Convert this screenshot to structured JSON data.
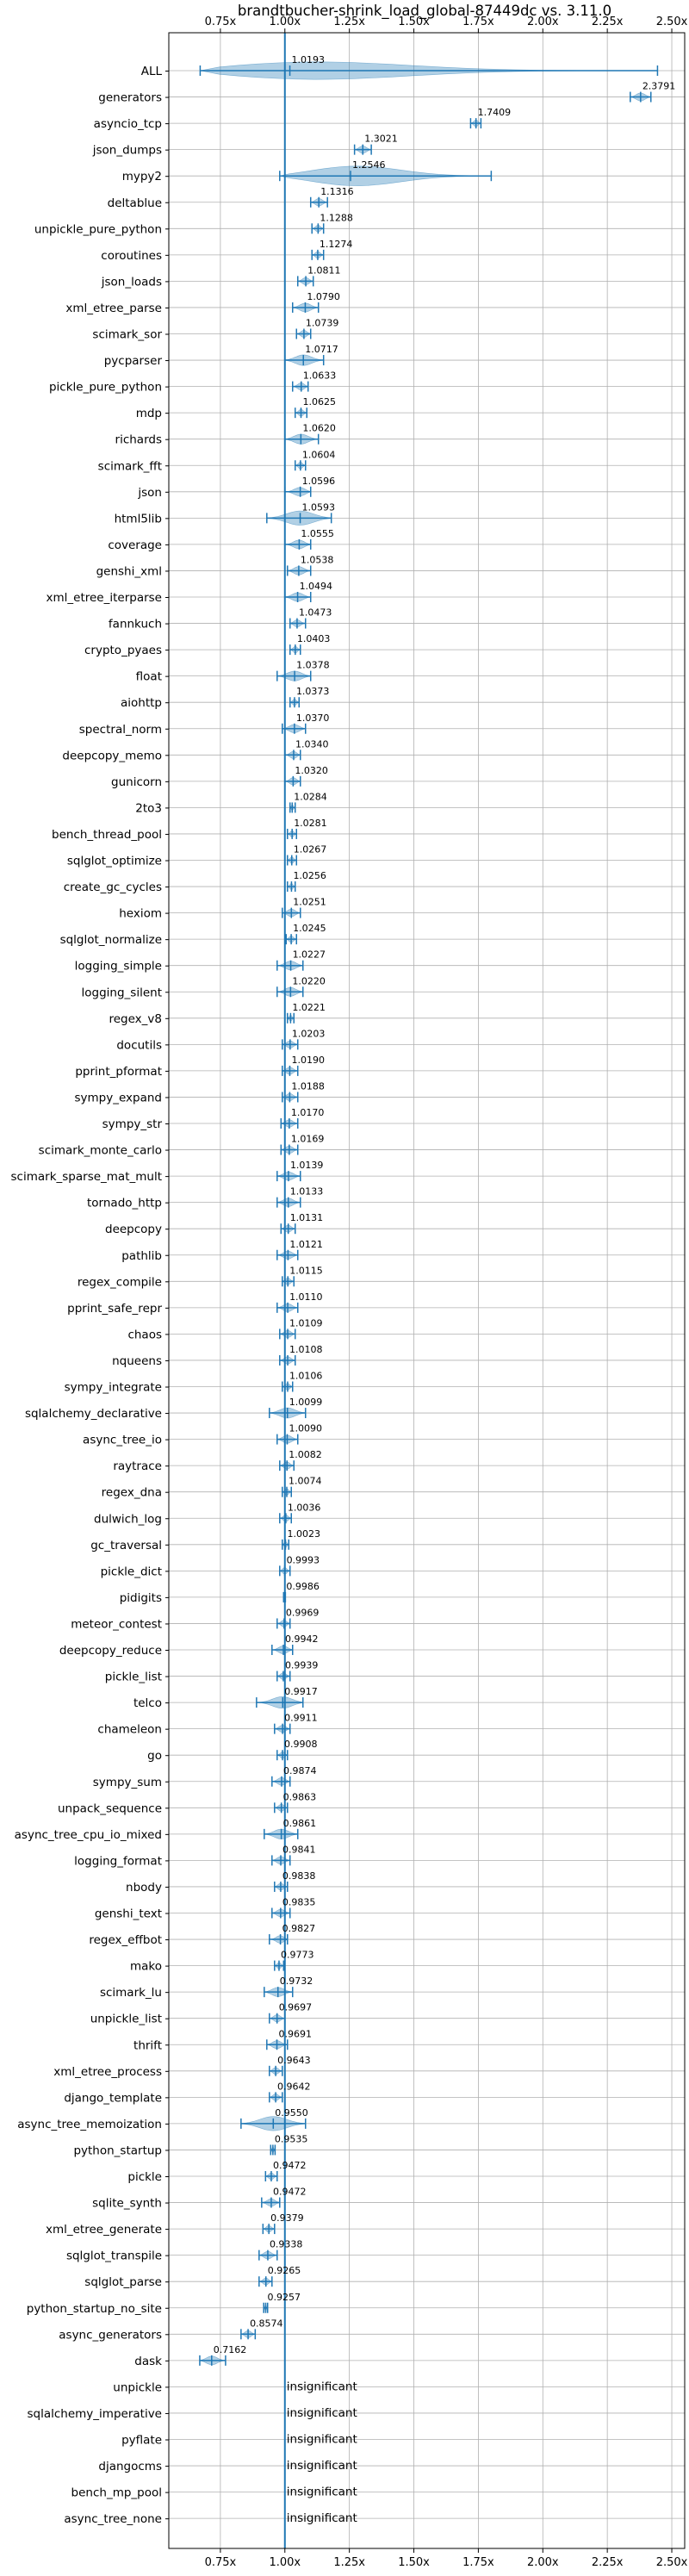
{
  "chart_data": {
    "type": "violin",
    "title": "brandtbucher-shrink_load_global-87449dc vs. 3.11.0",
    "xlim": [
      0.55,
      2.55
    ],
    "xticks": [
      0.75,
      1.0,
      1.25,
      1.5,
      1.75,
      2.0,
      2.25,
      2.5
    ],
    "xtick_labels": [
      "0.75x",
      "1.00x",
      "1.25x",
      "1.50x",
      "1.75x",
      "2.00x",
      "2.25x",
      "2.50x"
    ],
    "reference_line": 1.0,
    "grid": true,
    "colors": {
      "accent": "#1f77b4",
      "violin_fill": "#1f77b4",
      "grid": "#b0b0b0"
    },
    "insignificant_label": "insignificant",
    "benchmarks": [
      {
        "name": "ALL",
        "value": 1.0193,
        "min": 0.6716,
        "max": 2.4446,
        "label": "1.0193"
      },
      {
        "name": "generators",
        "value": 2.3791,
        "min": 2.339,
        "max": 2.419,
        "label": "2.3791"
      },
      {
        "name": "asyncio_tcp",
        "value": 1.7409,
        "min": 1.72,
        "max": 1.76,
        "label": "1.7409"
      },
      {
        "name": "json_dumps",
        "value": 1.3021,
        "min": 1.27,
        "max": 1.335,
        "label": "1.3021"
      },
      {
        "name": "mypy2",
        "value": 1.2546,
        "min": 0.98,
        "max": 1.8,
        "label": "1.2546"
      },
      {
        "name": "deltablue",
        "value": 1.1316,
        "min": 1.1,
        "max": 1.165,
        "label": "1.1316"
      },
      {
        "name": "unpickle_pure_python",
        "value": 1.1288,
        "min": 1.105,
        "max": 1.15,
        "label": "1.1288"
      },
      {
        "name": "coroutines",
        "value": 1.1274,
        "min": 1.105,
        "max": 1.15,
        "label": "1.1274"
      },
      {
        "name": "json_loads",
        "value": 1.0811,
        "min": 1.05,
        "max": 1.11,
        "label": "1.0811"
      },
      {
        "name": "xml_etree_parse",
        "value": 1.079,
        "min": 1.03,
        "max": 1.13,
        "label": "1.0790"
      },
      {
        "name": "scimark_sor",
        "value": 1.0739,
        "min": 1.045,
        "max": 1.1,
        "label": "1.0739"
      },
      {
        "name": "pycparser",
        "value": 1.0717,
        "min": 1.0,
        "max": 1.15,
        "label": "1.0717"
      },
      {
        "name": "pickle_pure_python",
        "value": 1.0633,
        "min": 1.03,
        "max": 1.09,
        "label": "1.0633"
      },
      {
        "name": "mdp",
        "value": 1.0625,
        "min": 1.04,
        "max": 1.085,
        "label": "1.0625"
      },
      {
        "name": "richards",
        "value": 1.062,
        "min": 1.0,
        "max": 1.13,
        "label": "1.0620"
      },
      {
        "name": "scimark_fft",
        "value": 1.0604,
        "min": 1.04,
        "max": 1.08,
        "label": "1.0604"
      },
      {
        "name": "json",
        "value": 1.0596,
        "min": 1.0,
        "max": 1.1,
        "label": "1.0596"
      },
      {
        "name": "html5lib",
        "value": 1.0593,
        "min": 0.93,
        "max": 1.18,
        "label": "1.0593"
      },
      {
        "name": "coverage",
        "value": 1.0555,
        "min": 1.0,
        "max": 1.1,
        "label": "1.0555"
      },
      {
        "name": "genshi_xml",
        "value": 1.0538,
        "min": 1.01,
        "max": 1.1,
        "label": "1.0538"
      },
      {
        "name": "xml_etree_iterparse",
        "value": 1.0494,
        "min": 1.0,
        "max": 1.1,
        "label": "1.0494"
      },
      {
        "name": "fannkuch",
        "value": 1.0473,
        "min": 1.02,
        "max": 1.08,
        "label": "1.0473"
      },
      {
        "name": "crypto_pyaes",
        "value": 1.0403,
        "min": 1.02,
        "max": 1.06,
        "label": "1.0403"
      },
      {
        "name": "float",
        "value": 1.0378,
        "min": 0.97,
        "max": 1.1,
        "label": "1.0378"
      },
      {
        "name": "aiohttp",
        "value": 1.0373,
        "min": 1.02,
        "max": 1.055,
        "label": "1.0373"
      },
      {
        "name": "spectral_norm",
        "value": 1.037,
        "min": 0.99,
        "max": 1.08,
        "label": "1.0370"
      },
      {
        "name": "deepcopy_memo",
        "value": 1.034,
        "min": 1.0,
        "max": 1.06,
        "label": "1.0340"
      },
      {
        "name": "gunicorn",
        "value": 1.032,
        "min": 1.0,
        "max": 1.06,
        "label": "1.0320"
      },
      {
        "name": "2to3",
        "value": 1.0284,
        "min": 1.02,
        "max": 1.04,
        "label": "1.0284"
      },
      {
        "name": "bench_thread_pool",
        "value": 1.0281,
        "min": 1.01,
        "max": 1.045,
        "label": "1.0281"
      },
      {
        "name": "sqlglot_optimize",
        "value": 1.0267,
        "min": 1.01,
        "max": 1.045,
        "label": "1.0267"
      },
      {
        "name": "create_gc_cycles",
        "value": 1.0256,
        "min": 1.01,
        "max": 1.04,
        "label": "1.0256"
      },
      {
        "name": "hexiom",
        "value": 1.0251,
        "min": 0.99,
        "max": 1.06,
        "label": "1.0251"
      },
      {
        "name": "sqlglot_normalize",
        "value": 1.0245,
        "min": 1.005,
        "max": 1.045,
        "label": "1.0245"
      },
      {
        "name": "logging_simple",
        "value": 1.0227,
        "min": 0.97,
        "max": 1.07,
        "label": "1.0227"
      },
      {
        "name": "logging_silent",
        "value": 1.022,
        "min": 0.97,
        "max": 1.07,
        "label": "1.0220"
      },
      {
        "name": "regex_v8",
        "value": 1.0221,
        "min": 1.01,
        "max": 1.035,
        "label": "1.0221"
      },
      {
        "name": "docutils",
        "value": 1.0203,
        "min": 0.99,
        "max": 1.05,
        "label": "1.0203"
      },
      {
        "name": "pprint_pformat",
        "value": 1.019,
        "min": 0.99,
        "max": 1.05,
        "label": "1.0190"
      },
      {
        "name": "sympy_expand",
        "value": 1.0188,
        "min": 0.99,
        "max": 1.05,
        "label": "1.0188"
      },
      {
        "name": "sympy_str",
        "value": 1.017,
        "min": 0.985,
        "max": 1.05,
        "label": "1.0170"
      },
      {
        "name": "scimark_monte_carlo",
        "value": 1.0169,
        "min": 0.985,
        "max": 1.05,
        "label": "1.0169"
      },
      {
        "name": "scimark_sparse_mat_mult",
        "value": 1.0139,
        "min": 0.97,
        "max": 1.06,
        "label": "1.0139"
      },
      {
        "name": "tornado_http",
        "value": 1.0133,
        "min": 0.97,
        "max": 1.06,
        "label": "1.0133"
      },
      {
        "name": "deepcopy",
        "value": 1.0131,
        "min": 0.985,
        "max": 1.04,
        "label": "1.0131"
      },
      {
        "name": "pathlib",
        "value": 1.0121,
        "min": 0.97,
        "max": 1.05,
        "label": "1.0121"
      },
      {
        "name": "regex_compile",
        "value": 1.0115,
        "min": 0.99,
        "max": 1.035,
        "label": "1.0115"
      },
      {
        "name": "pprint_safe_repr",
        "value": 1.011,
        "min": 0.97,
        "max": 1.05,
        "label": "1.0110"
      },
      {
        "name": "chaos",
        "value": 1.0109,
        "min": 0.98,
        "max": 1.04,
        "label": "1.0109"
      },
      {
        "name": "nqueens",
        "value": 1.0108,
        "min": 0.98,
        "max": 1.04,
        "label": "1.0108"
      },
      {
        "name": "sympy_integrate",
        "value": 1.0106,
        "min": 0.99,
        "max": 1.03,
        "label": "1.0106"
      },
      {
        "name": "sqlalchemy_declarative",
        "value": 1.0099,
        "min": 0.94,
        "max": 1.08,
        "label": "1.0099"
      },
      {
        "name": "async_tree_io",
        "value": 1.009,
        "min": 0.97,
        "max": 1.05,
        "label": "1.0090"
      },
      {
        "name": "raytrace",
        "value": 1.0082,
        "min": 0.98,
        "max": 1.035,
        "label": "1.0082"
      },
      {
        "name": "regex_dna",
        "value": 1.0074,
        "min": 0.99,
        "max": 1.025,
        "label": "1.0074"
      },
      {
        "name": "dulwich_log",
        "value": 1.0036,
        "min": 0.98,
        "max": 1.025,
        "label": "1.0036"
      },
      {
        "name": "gc_traversal",
        "value": 1.0023,
        "min": 0.99,
        "max": 1.015,
        "label": "1.0023"
      },
      {
        "name": "pickle_dict",
        "value": 0.9993,
        "min": 0.98,
        "max": 1.02,
        "label": "0.9993"
      },
      {
        "name": "pidigits",
        "value": 0.9986,
        "min": 0.995,
        "max": 1.002,
        "label": "0.9986"
      },
      {
        "name": "meteor_contest",
        "value": 0.9969,
        "min": 0.97,
        "max": 1.02,
        "label": "0.9969"
      },
      {
        "name": "deepcopy_reduce",
        "value": 0.9942,
        "min": 0.95,
        "max": 1.03,
        "label": "0.9942"
      },
      {
        "name": "pickle_list",
        "value": 0.9939,
        "min": 0.97,
        "max": 1.02,
        "label": "0.9939"
      },
      {
        "name": "telco",
        "value": 0.9917,
        "min": 0.89,
        "max": 1.07,
        "label": "0.9917"
      },
      {
        "name": "chameleon",
        "value": 0.9911,
        "min": 0.96,
        "max": 1.02,
        "label": "0.9911"
      },
      {
        "name": "go",
        "value": 0.9908,
        "min": 0.97,
        "max": 1.01,
        "label": "0.9908"
      },
      {
        "name": "sympy_sum",
        "value": 0.9874,
        "min": 0.95,
        "max": 1.02,
        "label": "0.9874"
      },
      {
        "name": "unpack_sequence",
        "value": 0.9863,
        "min": 0.96,
        "max": 1.01,
        "label": "0.9863"
      },
      {
        "name": "async_tree_cpu_io_mixed",
        "value": 0.9861,
        "min": 0.92,
        "max": 1.05,
        "label": "0.9861"
      },
      {
        "name": "logging_format",
        "value": 0.9841,
        "min": 0.95,
        "max": 1.02,
        "label": "0.9841"
      },
      {
        "name": "nbody",
        "value": 0.9838,
        "min": 0.96,
        "max": 1.01,
        "label": "0.9838"
      },
      {
        "name": "genshi_text",
        "value": 0.9835,
        "min": 0.95,
        "max": 1.02,
        "label": "0.9835"
      },
      {
        "name": "regex_effbot",
        "value": 0.9827,
        "min": 0.94,
        "max": 1.01,
        "label": "0.9827"
      },
      {
        "name": "mako",
        "value": 0.9773,
        "min": 0.96,
        "max": 0.995,
        "label": "0.9773"
      },
      {
        "name": "scimark_lu",
        "value": 0.9732,
        "min": 0.92,
        "max": 1.03,
        "label": "0.9732"
      },
      {
        "name": "unpickle_list",
        "value": 0.9697,
        "min": 0.94,
        "max": 1.0,
        "label": "0.9697"
      },
      {
        "name": "thrift",
        "value": 0.9691,
        "min": 0.93,
        "max": 1.01,
        "label": "0.9691"
      },
      {
        "name": "xml_etree_process",
        "value": 0.9643,
        "min": 0.94,
        "max": 0.99,
        "label": "0.9643"
      },
      {
        "name": "django_template",
        "value": 0.9642,
        "min": 0.94,
        "max": 0.99,
        "label": "0.9642"
      },
      {
        "name": "async_tree_memoization",
        "value": 0.955,
        "min": 0.83,
        "max": 1.08,
        "label": "0.9550"
      },
      {
        "name": "python_startup",
        "value": 0.9535,
        "min": 0.945,
        "max": 0.962,
        "label": "0.9535"
      },
      {
        "name": "pickle",
        "value": 0.9472,
        "min": 0.925,
        "max": 0.97,
        "label": "0.9472"
      },
      {
        "name": "sqlite_synth",
        "value": 0.9472,
        "min": 0.91,
        "max": 0.98,
        "label": "0.9472"
      },
      {
        "name": "xml_etree_generate",
        "value": 0.9379,
        "min": 0.915,
        "max": 0.96,
        "label": "0.9379"
      },
      {
        "name": "sqlglot_transpile",
        "value": 0.9338,
        "min": 0.9,
        "max": 0.97,
        "label": "0.9338"
      },
      {
        "name": "sqlglot_parse",
        "value": 0.9265,
        "min": 0.9,
        "max": 0.95,
        "label": "0.9265"
      },
      {
        "name": "python_startup_no_site",
        "value": 0.9257,
        "min": 0.918,
        "max": 0.933,
        "label": "0.9257"
      },
      {
        "name": "async_generators",
        "value": 0.8574,
        "min": 0.83,
        "max": 0.885,
        "label": "0.8574"
      },
      {
        "name": "dask",
        "value": 0.7162,
        "min": 0.67,
        "max": 0.77,
        "label": "0.7162"
      },
      {
        "name": "unpickle",
        "insignificant": true
      },
      {
        "name": "sqlalchemy_imperative",
        "insignificant": true
      },
      {
        "name": "pyflate",
        "insignificant": true
      },
      {
        "name": "djangocms",
        "insignificant": true
      },
      {
        "name": "bench_mp_pool",
        "insignificant": true
      },
      {
        "name": "async_tree_none",
        "insignificant": true
      }
    ]
  }
}
